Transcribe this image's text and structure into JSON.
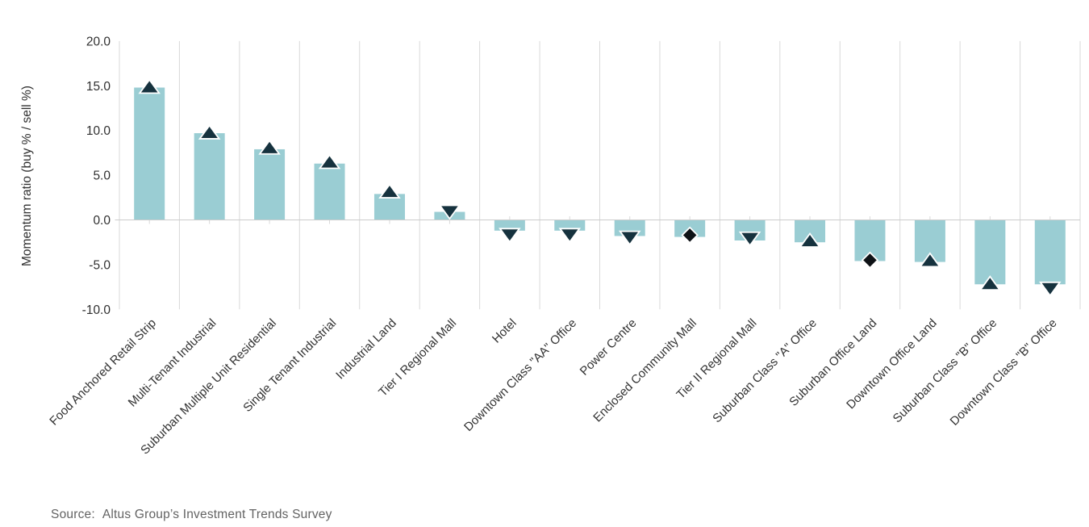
{
  "page": {
    "source_label": "Source:",
    "source_text": "Altus Group’s Investment Trends Survey"
  },
  "chart_data": {
    "type": "bar",
    "title": "",
    "xlabel": "",
    "ylabel": "Momentum ratio (buy % / sell %)",
    "ylim": [
      -10,
      20
    ],
    "ytick_values": [
      20,
      15,
      10,
      5,
      0,
      -5,
      -10
    ],
    "ytick_labels": [
      "20.0",
      "15.0",
      "10.0",
      "5.0",
      "0.0",
      "-5.0",
      "-10.0"
    ],
    "grid": "vertical category separator lines only, horizontal line at zero",
    "legend": "none",
    "categories": [
      "Food Anchored Retail Strip",
      "Multi-Tenant Industrial",
      "Suburban Multiple Unit Residential",
      "Single Tenant Industrial",
      "Industrial Land",
      "Tier I Regional Mall",
      "Hotel",
      "Downtown Class \"AA\" Office",
      "Power Centre",
      "Enclosed Community Mall",
      "Tier II Regional Mall",
      "Suburban Class \"A\" Office",
      "Suburban Office Land",
      "Downtown Office Land",
      "Suburban Class \"B\" Office",
      "Downtown Class \"B\" Office"
    ],
    "series": [
      {
        "name": "bars",
        "values": [
          14.8,
          9.7,
          7.9,
          6.3,
          2.9,
          0.9,
          -1.2,
          -1.2,
          -1.8,
          -1.9,
          -2.3,
          -2.5,
          -4.6,
          -4.7,
          -7.2,
          -7.2
        ]
      },
      {
        "name": "markers",
        "values": [
          14.9,
          9.8,
          8.1,
          6.5,
          3.2,
          0.9,
          -1.7,
          -1.7,
          -2.0,
          -1.7,
          -2.1,
          -2.3,
          -4.5,
          -4.5,
          -7.1,
          -7.7
        ],
        "marker_shapes": [
          "up",
          "up",
          "up",
          "up",
          "up",
          "down",
          "down",
          "down",
          "down",
          "diamond",
          "down",
          "up",
          "diamond",
          "up",
          "up",
          "down"
        ]
      }
    ],
    "colors": {
      "bar_fill": "#9acdd3",
      "triangle_marker": "#16323e",
      "diamond_marker": "#0e1216",
      "marker_outline": "#ffffff",
      "gridline": "#d9d9d9",
      "zero_axis_line": "#cccccc",
      "tick_label": "#303030",
      "category_label": "#333333",
      "axis_title": "#303030",
      "source_text": "#636363",
      "background": "#ffffff"
    }
  }
}
